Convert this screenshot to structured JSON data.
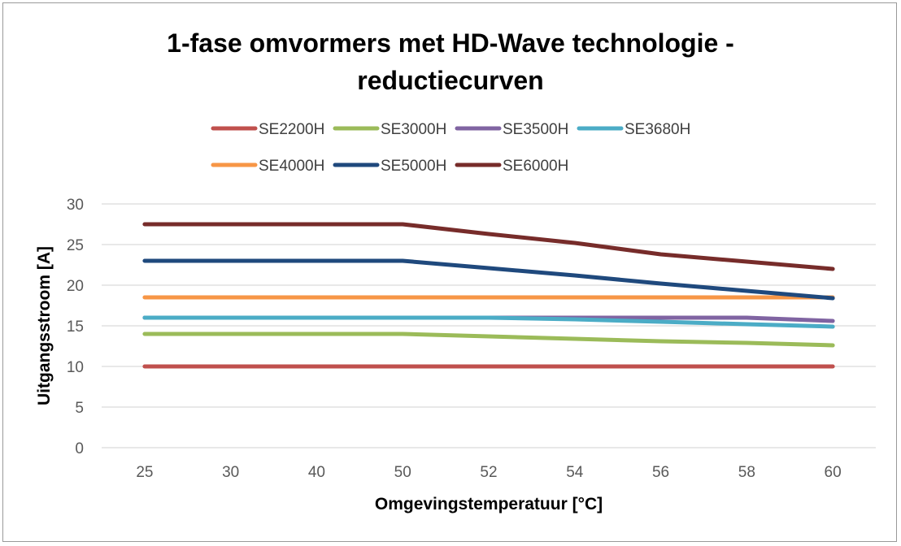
{
  "chart_data": {
    "type": "line",
    "title_line1": "1-fase omvormers met HD-Wave technologie -",
    "title_line2": "reductiecurven",
    "xlabel": "Omgevingstemperatuur [°C]",
    "ylabel": "Uitgangsstroom [A]",
    "x": [
      "25",
      "30",
      "40",
      "50",
      "52",
      "54",
      "56",
      "58",
      "60"
    ],
    "ylim": [
      0,
      30
    ],
    "yticks": [
      "0",
      "5",
      "10",
      "15",
      "20",
      "25",
      "30"
    ],
    "grid": "horizontal",
    "legend": "top",
    "series": [
      {
        "name": "SE2200H",
        "color": "#c0504d",
        "values": [
          10,
          10,
          10,
          10,
          10,
          10,
          10,
          10,
          10
        ]
      },
      {
        "name": "SE3000H",
        "color": "#9bbb59",
        "values": [
          14,
          14,
          14,
          14,
          13.7,
          13.4,
          13.1,
          12.9,
          12.6
        ]
      },
      {
        "name": "SE3500H",
        "color": "#8064a2",
        "values": [
          16,
          16,
          16,
          16,
          16,
          16,
          16,
          16,
          15.6
        ]
      },
      {
        "name": "SE3680H",
        "color": "#4bacc6",
        "values": [
          16,
          16,
          16,
          16,
          16,
          15.8,
          15.5,
          15.2,
          14.9
        ]
      },
      {
        "name": "SE4000H",
        "color": "#f79646",
        "values": [
          18.5,
          18.5,
          18.5,
          18.5,
          18.5,
          18.5,
          18.5,
          18.5,
          18.5
        ]
      },
      {
        "name": "SE5000H",
        "color": "#1f497d",
        "values": [
          23,
          23,
          23,
          23,
          22.1,
          21.2,
          20.2,
          19.3,
          18.4
        ]
      },
      {
        "name": "SE6000H",
        "color": "#772c2a",
        "values": [
          27.5,
          27.5,
          27.5,
          27.5,
          26.3,
          25.2,
          23.8,
          22.9,
          22
        ]
      }
    ]
  }
}
